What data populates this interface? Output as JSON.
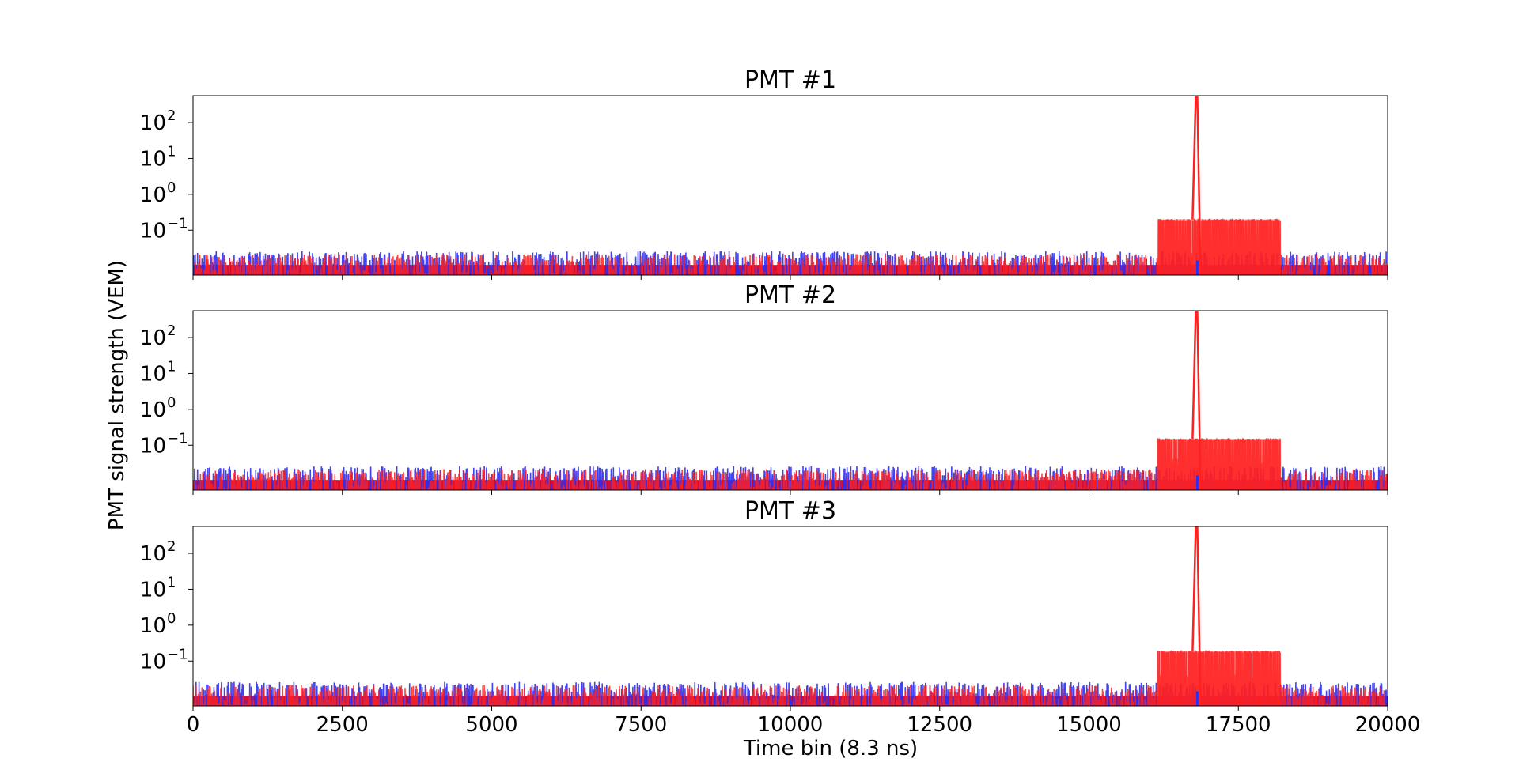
{
  "chart_data": {
    "type": "line",
    "shared_xlabel": "Time bin (8.3 ns)",
    "shared_ylabel": "PMT signal strength (VEM)",
    "xlim": [
      0,
      20000
    ],
    "x_ticks": [
      "0",
      "2500",
      "5000",
      "7500",
      "10000",
      "12500",
      "15000",
      "17500",
      "20000"
    ],
    "y_scale": "log",
    "colors": {
      "series_a": "#2e2ef0",
      "series_b": "#ff2020",
      "overlap": "#d0103a"
    },
    "panels": [
      {
        "title": "PMT #1",
        "ylim_log10": [
          -2.25,
          2.75
        ],
        "y_ticks": [
          {
            "base": "10",
            "exp": "2"
          },
          {
            "base": "10",
            "exp": "1"
          },
          {
            "base": "10",
            "exp": "0"
          },
          {
            "base": "10",
            "exp": "−1"
          }
        ],
        "noise_level": 0.012,
        "signal_window": [
          16150,
          18200
        ],
        "signal_plateau": 0.2,
        "peak": {
          "x": 16800,
          "y": 550
        }
      },
      {
        "title": "PMT #2",
        "ylim_log10": [
          -2.25,
          2.75
        ],
        "y_ticks": [
          {
            "base": "10",
            "exp": "2"
          },
          {
            "base": "10",
            "exp": "1"
          },
          {
            "base": "10",
            "exp": "0"
          },
          {
            "base": "10",
            "exp": "−1"
          }
        ],
        "noise_level": 0.012,
        "signal_window": [
          16150,
          18200
        ],
        "signal_plateau": 0.15,
        "peak": {
          "x": 16800,
          "y": 550
        }
      },
      {
        "title": "PMT #3",
        "ylim_log10": [
          -2.25,
          2.75
        ],
        "y_ticks": [
          {
            "base": "10",
            "exp": "2"
          },
          {
            "base": "10",
            "exp": "1"
          },
          {
            "base": "10",
            "exp": "0"
          },
          {
            "base": "10",
            "exp": "−1"
          }
        ],
        "noise_level": 0.012,
        "signal_window": [
          16150,
          18200
        ],
        "signal_plateau": 0.19,
        "peak": {
          "x": 16800,
          "y": 550
        }
      }
    ]
  }
}
